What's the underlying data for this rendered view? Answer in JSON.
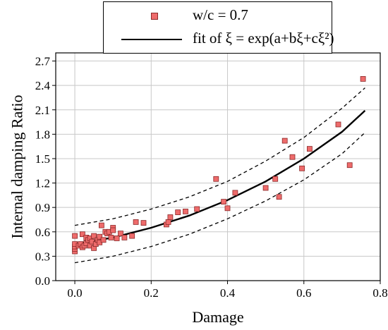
{
  "chart_data": {
    "type": "scatter",
    "title": "",
    "xlabel": "Damage",
    "ylabel": "Internal damping Ratio",
    "xlim": [
      -0.05,
      0.8
    ],
    "ylim": [
      0.0,
      2.8
    ],
    "xticks": [
      0.0,
      0.2,
      0.4,
      0.6,
      0.8
    ],
    "xtick_labels": [
      "0.0",
      "0.2",
      "0.4",
      "0.6",
      "0.8"
    ],
    "yticks": [
      0.0,
      0.3,
      0.6,
      0.9,
      1.2,
      1.5,
      1.8,
      2.1,
      2.4,
      2.7
    ],
    "ytick_labels": [
      "0.0",
      "0.3",
      "0.6",
      "0.9",
      "1.2",
      "1.5",
      "1.8",
      "2.1",
      "2.4",
      "2.7"
    ],
    "grid": true,
    "legend_position": "top-center",
    "legend": [
      {
        "label": "w/c = 0.7",
        "kind": "marker",
        "color": "#ee6b6b"
      },
      {
        "label": "fit of ξ = exp(a+bξ+cξ²)",
        "kind": "line",
        "color": "#000000"
      }
    ],
    "series": [
      {
        "name": "w/c = 0.7",
        "kind": "scatter",
        "color": "#ee6b6b",
        "points": [
          [
            0.0,
            0.36
          ],
          [
            0.0,
            0.39
          ],
          [
            0.0,
            0.42
          ],
          [
            0.0,
            0.45
          ],
          [
            0.0,
            0.55
          ],
          [
            0.01,
            0.43
          ],
          [
            0.015,
            0.45
          ],
          [
            0.02,
            0.57
          ],
          [
            0.02,
            0.41
          ],
          [
            0.025,
            0.43
          ],
          [
            0.03,
            0.46
          ],
          [
            0.03,
            0.53
          ],
          [
            0.035,
            0.5
          ],
          [
            0.04,
            0.43
          ],
          [
            0.04,
            0.52
          ],
          [
            0.045,
            0.48
          ],
          [
            0.05,
            0.4
          ],
          [
            0.05,
            0.55
          ],
          [
            0.055,
            0.45
          ],
          [
            0.06,
            0.5
          ],
          [
            0.065,
            0.47
          ],
          [
            0.065,
            0.54
          ],
          [
            0.07,
            0.68
          ],
          [
            0.075,
            0.5
          ],
          [
            0.08,
            0.6
          ],
          [
            0.085,
            0.58
          ],
          [
            0.09,
            0.6
          ],
          [
            0.095,
            0.53
          ],
          [
            0.1,
            0.65
          ],
          [
            0.1,
            0.62
          ],
          [
            0.11,
            0.52
          ],
          [
            0.12,
            0.58
          ],
          [
            0.13,
            0.53
          ],
          [
            0.15,
            0.55
          ],
          [
            0.16,
            0.72
          ],
          [
            0.18,
            0.71
          ],
          [
            0.24,
            0.69
          ],
          [
            0.245,
            0.72
          ],
          [
            0.25,
            0.78
          ],
          [
            0.27,
            0.84
          ],
          [
            0.29,
            0.85
          ],
          [
            0.32,
            0.88
          ],
          [
            0.37,
            1.25
          ],
          [
            0.39,
            0.97
          ],
          [
            0.4,
            0.89
          ],
          [
            0.42,
            1.08
          ],
          [
            0.5,
            1.14
          ],
          [
            0.525,
            1.25
          ],
          [
            0.535,
            1.03
          ],
          [
            0.55,
            1.72
          ],
          [
            0.57,
            1.52
          ],
          [
            0.595,
            1.38
          ],
          [
            0.615,
            1.62
          ],
          [
            0.69,
            1.92
          ],
          [
            0.72,
            1.42
          ],
          [
            0.755,
            2.48
          ]
        ]
      },
      {
        "name": "fit of ξ = exp(a+bξ+cξ²)",
        "kind": "line",
        "style": "solid",
        "color": "#000000",
        "x": [
          0.0,
          0.1,
          0.2,
          0.3,
          0.4,
          0.5,
          0.6,
          0.7,
          0.76
        ],
        "y": [
          0.45,
          0.53,
          0.65,
          0.8,
          0.99,
          1.22,
          1.5,
          1.83,
          2.09
        ]
      },
      {
        "kind": "line",
        "style": "dashed",
        "color": "#000000",
        "x": [
          0.0,
          0.1,
          0.2,
          0.3,
          0.4,
          0.5,
          0.6,
          0.7,
          0.76
        ],
        "y": [
          0.68,
          0.76,
          0.88,
          1.03,
          1.22,
          1.47,
          1.76,
          2.12,
          2.37
        ]
      },
      {
        "kind": "line",
        "style": "dashed",
        "color": "#000000",
        "x": [
          0.0,
          0.1,
          0.2,
          0.3,
          0.4,
          0.5,
          0.6,
          0.7,
          0.76
        ],
        "y": [
          0.22,
          0.3,
          0.42,
          0.57,
          0.76,
          0.98,
          1.24,
          1.56,
          1.82
        ]
      }
    ]
  }
}
